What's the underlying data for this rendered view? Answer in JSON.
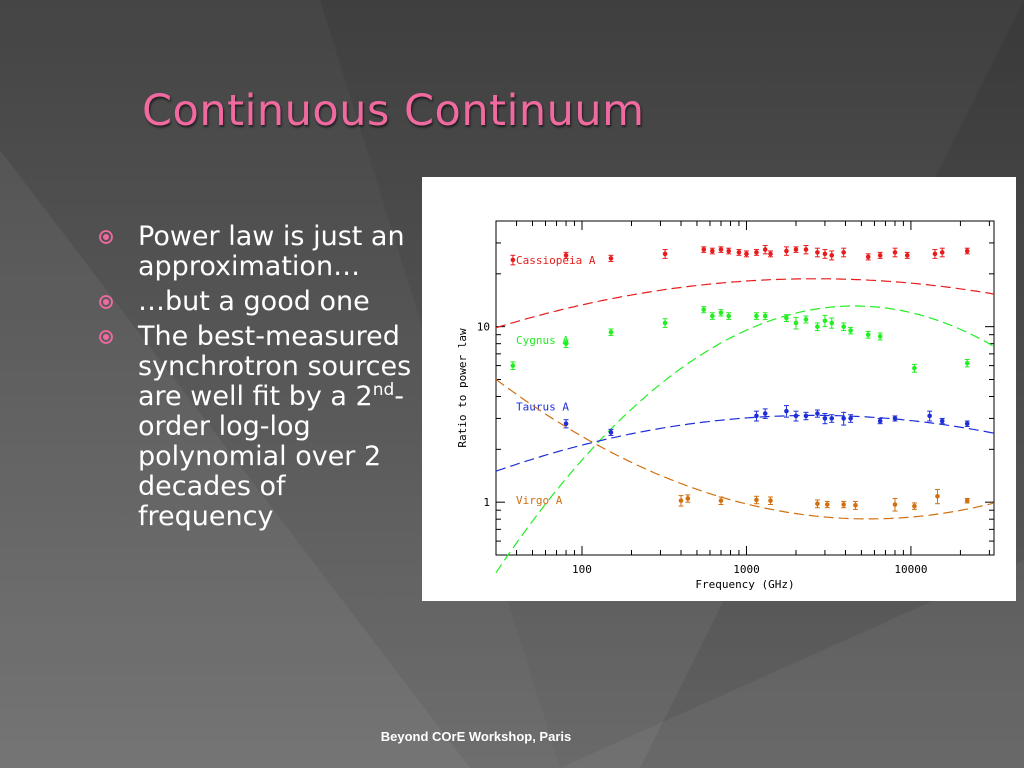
{
  "slide": {
    "title": "Continuous Continuum",
    "bullets": [
      {
        "text": "Power law is just an approximation…"
      },
      {
        "text": "…but a good one"
      },
      {
        "pre": "The best-measured synchrotron sources are well fit by a 2",
        "sup": "nd",
        "post": "-order log-log polynomial over 2 decades of frequency"
      }
    ],
    "footer": "Beyond COrE Workshop, Paris",
    "accent_color": "#f06aa0",
    "bullet_icon": "radio-bullet-icon"
  },
  "chart_data": {
    "type": "scatter",
    "xlabel": "Frequency (GHz)",
    "ylabel": "Ratio to power law",
    "xscale": "log",
    "yscale": "log",
    "xlim": [
      30,
      32000
    ],
    "ylim": [
      0.5,
      40
    ],
    "xticks": [
      {
        "value": 100,
        "label": "100"
      },
      {
        "value": 1000,
        "label": "1000"
      },
      {
        "value": 10000,
        "label": "10000"
      }
    ],
    "yticks": [
      {
        "value": 1,
        "label": "1"
      },
      {
        "value": 10,
        "label": "10"
      }
    ],
    "grid": false,
    "series": [
      {
        "name": "Cassiopeia A",
        "color": "#e81c1c",
        "fit": [
          1.26,
          0.062,
          -0.074
        ],
        "points": [
          [
            38,
            24,
            1.5
          ],
          [
            80,
            25.5,
            1
          ],
          [
            150,
            24.5,
            1
          ],
          [
            320,
            26,
            1.5
          ],
          [
            550,
            27.5,
            1
          ],
          [
            620,
            27,
            1
          ],
          [
            700,
            27.5,
            1
          ],
          [
            780,
            27,
            1
          ],
          [
            900,
            26.5,
            1
          ],
          [
            1000,
            26,
            1
          ],
          [
            1150,
            26.5,
            1
          ],
          [
            1300,
            27.5,
            1.5
          ],
          [
            1400,
            26,
            1
          ],
          [
            1750,
            27,
            1.5
          ],
          [
            2000,
            27.5,
            1
          ],
          [
            2300,
            27.5,
            1.5
          ],
          [
            2700,
            26.5,
            1.5
          ],
          [
            3000,
            26,
            1.5
          ],
          [
            3300,
            25.5,
            1.5
          ],
          [
            3900,
            26.5,
            1.5
          ],
          [
            5500,
            25,
            1
          ],
          [
            6500,
            25.5,
            1
          ],
          [
            8000,
            26.5,
            1.5
          ],
          [
            9500,
            25.5,
            1
          ],
          [
            14000,
            26,
            1.5
          ],
          [
            15500,
            26.5,
            1.5
          ],
          [
            22000,
            27,
            1
          ]
        ]
      },
      {
        "name": "Cygnus A",
        "color": "#22ee22",
        "fit": [
          0.98,
          0.42,
          -0.32
        ],
        "points": [
          [
            38,
            6,
            0.3
          ],
          [
            80,
            8,
            0.4
          ],
          [
            150,
            9.3,
            0.4
          ],
          [
            320,
            10.5,
            0.6
          ],
          [
            550,
            12.5,
            0.5
          ],
          [
            620,
            11.5,
            0.5
          ],
          [
            700,
            12,
            0.5
          ],
          [
            780,
            11.5,
            0.5
          ],
          [
            1150,
            11.5,
            0.5
          ],
          [
            1300,
            11.5,
            0.5
          ],
          [
            1750,
            11.2,
            0.5
          ],
          [
            2000,
            10.5,
            0.8
          ],
          [
            2300,
            11,
            0.5
          ],
          [
            2700,
            10,
            0.5
          ],
          [
            3000,
            10.8,
            0.8
          ],
          [
            3300,
            10.5,
            0.7
          ],
          [
            3900,
            10,
            0.5
          ],
          [
            4300,
            9.5,
            0.4
          ],
          [
            5500,
            9,
            0.4
          ],
          [
            6500,
            8.8,
            0.4
          ],
          [
            10500,
            5.8,
            0.3
          ],
          [
            22000,
            6.2,
            0.3
          ]
        ]
      },
      {
        "name": "Taurus A",
        "color": "#1e2ed8",
        "fit": [
          0.48,
          0.07,
          -0.085
        ],
        "points": [
          [
            80,
            2.8,
            0.15
          ],
          [
            150,
            2.5,
            0.1
          ],
          [
            1150,
            3.1,
            0.2
          ],
          [
            1300,
            3.2,
            0.2
          ],
          [
            1750,
            3.3,
            0.25
          ],
          [
            2000,
            3.1,
            0.2
          ],
          [
            2300,
            3.1,
            0.15
          ],
          [
            2700,
            3.2,
            0.15
          ],
          [
            3000,
            3,
            0.2
          ],
          [
            3300,
            3,
            0.15
          ],
          [
            3900,
            3,
            0.25
          ],
          [
            4300,
            3,
            0.15
          ],
          [
            6500,
            2.9,
            0.1
          ],
          [
            8000,
            3,
            0.1
          ],
          [
            13000,
            3.1,
            0.2
          ],
          [
            15500,
            2.9,
            0.1
          ],
          [
            22000,
            2.8,
            0.1
          ]
        ]
      },
      {
        "name": "Virgo A",
        "color": "#d07010",
        "fit": [
          -0.01,
          -0.23,
          0.155
        ],
        "points": [
          [
            400,
            1.02,
            0.07
          ],
          [
            440,
            1.05,
            0.05
          ],
          [
            700,
            1.02,
            0.05
          ],
          [
            1150,
            1.03,
            0.05
          ],
          [
            1400,
            1.02,
            0.05
          ],
          [
            2700,
            0.98,
            0.05
          ],
          [
            3100,
            0.97,
            0.04
          ],
          [
            3900,
            0.97,
            0.04
          ],
          [
            4600,
            0.96,
            0.05
          ],
          [
            8000,
            0.97,
            0.08
          ],
          [
            10500,
            0.95,
            0.04
          ],
          [
            14500,
            1.08,
            0.1
          ],
          [
            22000,
            1.02,
            0.03
          ]
        ]
      }
    ]
  }
}
